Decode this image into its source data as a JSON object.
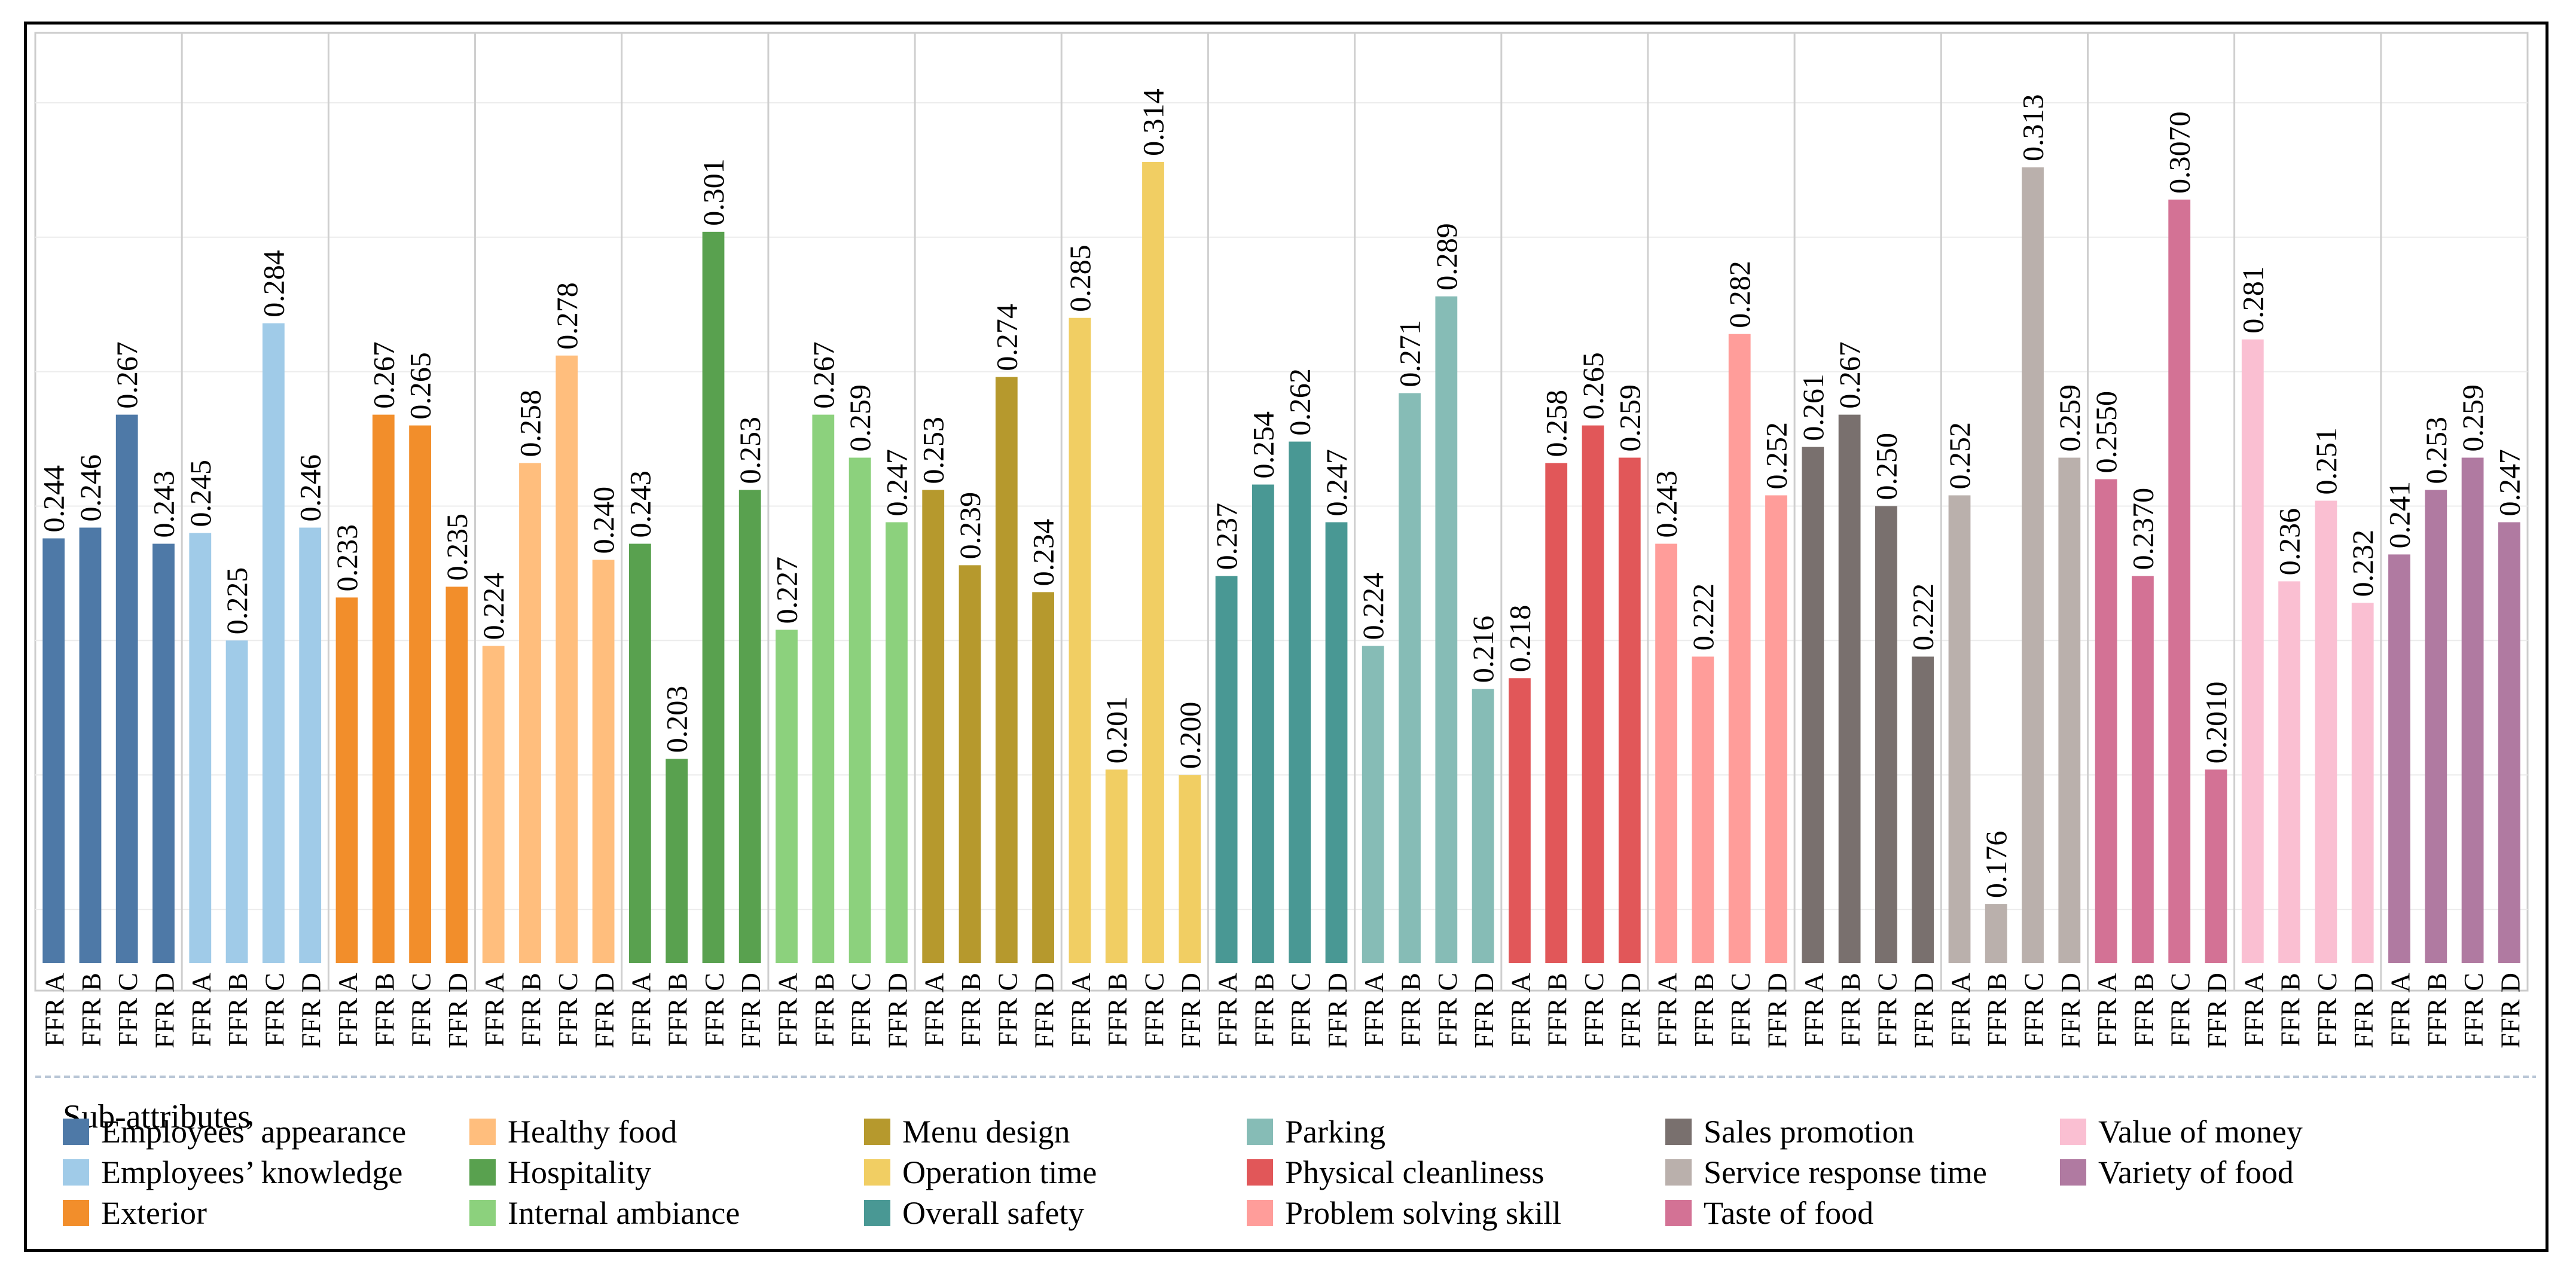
{
  "chart_data": {
    "type": "bar",
    "title": "",
    "xlabel": "",
    "ylabel": "",
    "ylim": [
      0.165,
      0.338
    ],
    "grid": true,
    "legend_title": "Sub-attributes",
    "legend_position": "bottom",
    "restaurants": [
      "FFR A",
      "FFR B",
      "FFR C",
      "FFR D"
    ],
    "groups": [
      {
        "name": "Employees’ appearance",
        "color": "#4E79A7",
        "values": [
          0.244,
          0.246,
          0.267,
          0.243
        ],
        "labels": [
          "0.244",
          "0.246",
          "0.267",
          "0.243"
        ]
      },
      {
        "name": "Employees’ knowledge",
        "color": "#A0CBE8",
        "values": [
          0.245,
          0.225,
          0.284,
          0.246
        ],
        "labels": [
          "0.245",
          "0.225",
          "0.284",
          "0.246"
        ]
      },
      {
        "name": "Exterior",
        "color": "#F28E2B",
        "values": [
          0.233,
          0.267,
          0.265,
          0.235
        ],
        "labels": [
          "0.233",
          "0.267",
          "0.265",
          "0.235"
        ]
      },
      {
        "name": "Healthy food",
        "color": "#FFBE7D",
        "values": [
          0.224,
          0.258,
          0.278,
          0.24
        ],
        "labels": [
          "0.224",
          "0.258",
          "0.278",
          "0.240"
        ]
      },
      {
        "name": "Hospitality",
        "color": "#59A14F",
        "values": [
          0.243,
          0.203,
          0.301,
          0.253
        ],
        "labels": [
          "0.243",
          "0.203",
          "0.301",
          "0.253"
        ]
      },
      {
        "name": "Internal ambiance",
        "color": "#8CD17D",
        "values": [
          0.227,
          0.267,
          0.259,
          0.247
        ],
        "labels": [
          "0.227",
          "0.267",
          "0.259",
          "0.247"
        ]
      },
      {
        "name": "Menu design",
        "color": "#B6992D",
        "values": [
          0.253,
          0.239,
          0.274,
          0.234
        ],
        "labels": [
          "0.253",
          "0.239",
          "0.274",
          "0.234"
        ]
      },
      {
        "name": "Operation time",
        "color": "#F1CE63",
        "values": [
          0.285,
          0.201,
          0.314,
          0.2
        ],
        "labels": [
          "0.285",
          "0.201",
          "0.314",
          "0.200"
        ]
      },
      {
        "name": "Overall safety",
        "color": "#499894",
        "values": [
          0.237,
          0.254,
          0.262,
          0.247
        ],
        "labels": [
          "0.237",
          "0.254",
          "0.262",
          "0.247"
        ]
      },
      {
        "name": "Parking",
        "color": "#86BCB6",
        "values": [
          0.224,
          0.271,
          0.289,
          0.216
        ],
        "labels": [
          "0.224",
          "0.271",
          "0.289",
          "0.216"
        ]
      },
      {
        "name": "Physical cleanliness",
        "color": "#E15759",
        "values": [
          0.218,
          0.258,
          0.265,
          0.259
        ],
        "labels": [
          "0.218",
          "0.258",
          "0.265",
          "0.259"
        ]
      },
      {
        "name": "Problem solving skill",
        "color": "#FF9D9A",
        "values": [
          0.243,
          0.222,
          0.282,
          0.252
        ],
        "labels": [
          "0.243",
          "0.222",
          "0.282",
          "0.252"
        ]
      },
      {
        "name": "Sales promotion",
        "color": "#79706E",
        "values": [
          0.261,
          0.267,
          0.25,
          0.222
        ],
        "labels": [
          "0.261",
          "0.267",
          "0.250",
          "0.222"
        ]
      },
      {
        "name": "Service response time",
        "color": "#BAB0AC",
        "values": [
          0.252,
          0.176,
          0.313,
          0.259
        ],
        "labels": [
          "0.252",
          "0.176",
          "0.313",
          "0.259"
        ]
      },
      {
        "name": "Taste of food",
        "color": "#D37295",
        "values": [
          0.255,
          0.237,
          0.307,
          0.201
        ],
        "labels": [
          "0.2550",
          "0.2370",
          "0.3070",
          "0.2010"
        ]
      },
      {
        "name": "Value of money",
        "color": "#FABFD2",
        "values": [
          0.281,
          0.236,
          0.251,
          0.232
        ],
        "labels": [
          "0.281",
          "0.236",
          "0.251",
          "0.232"
        ]
      },
      {
        "name": "Variety of food",
        "color": "#B07AA1",
        "values": [
          0.241,
          0.253,
          0.259,
          0.247
        ],
        "labels": [
          "0.241",
          "0.253",
          "0.259",
          "0.247"
        ]
      }
    ]
  }
}
